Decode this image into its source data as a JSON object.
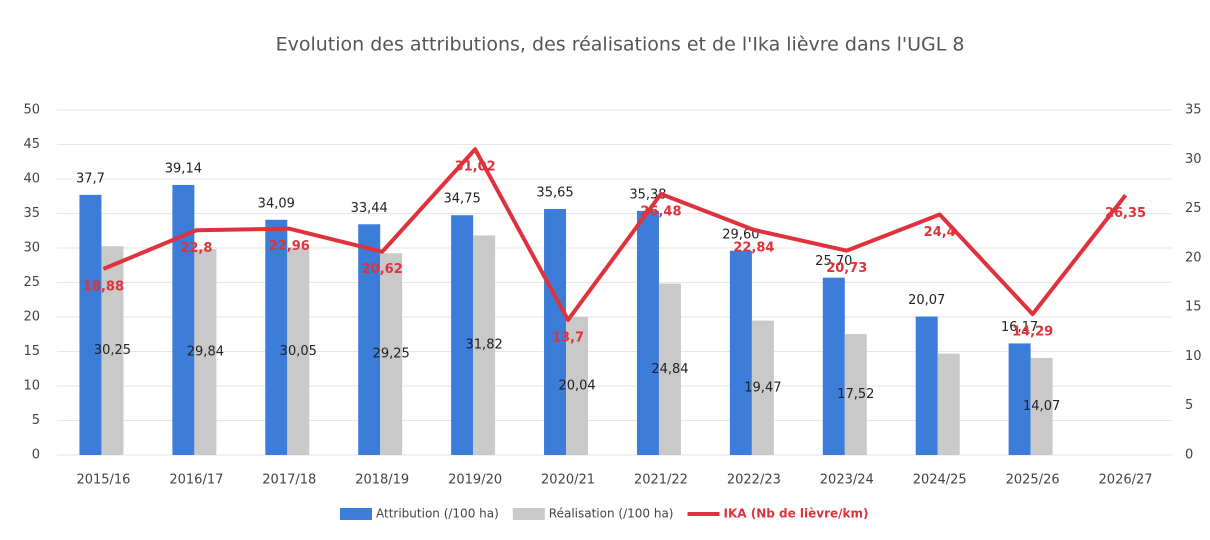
{
  "chart_data": {
    "type": "bar-line",
    "title": "Evolution des attributions, des réalisations et de l'Ika lièvre dans l'UGL 8",
    "categories": [
      "2015/16",
      "2016/17",
      "2017/18",
      "2018/19",
      "2019/20",
      "2020/21",
      "2021/22",
      "2022/23",
      "2023/24",
      "2024/25",
      "2025/26",
      "2026/27"
    ],
    "series": [
      {
        "name": "Attribution (/100 ha)",
        "color": "#3b7dd8",
        "type": "bar",
        "values": [
          37.7,
          39.14,
          34.09,
          33.44,
          34.75,
          35.65,
          35.38,
          29.6,
          25.7,
          20.07,
          16.17,
          null
        ],
        "value_labels": [
          "37,7",
          "39,14",
          "34,09",
          "33,44",
          "34,75",
          "35,65",
          "35,38",
          "29,60",
          "25,70",
          "20,07",
          "16,17",
          null
        ]
      },
      {
        "name": "Réalisation (/100 ha)",
        "color": "#c9c9c9",
        "type": "bar",
        "values": [
          30.25,
          29.84,
          30.05,
          29.25,
          31.82,
          20.04,
          24.84,
          19.47,
          17.52,
          14.7,
          14.07,
          null
        ],
        "value_labels": [
          "30,25",
          "29,84",
          "30,05",
          "29,25",
          "31,82",
          "20,04",
          "24,84",
          "19,47",
          "17,52",
          null,
          "14,07",
          null
        ]
      },
      {
        "name": "IKA (Nb de lièvre/km)",
        "color": "#e0323c",
        "type": "line",
        "axis": "y2",
        "values": [
          18.88,
          22.8,
          22.96,
          20.62,
          31.02,
          13.7,
          26.48,
          22.84,
          20.73,
          24.4,
          14.29,
          26.35
        ],
        "value_labels": [
          "18,88",
          "22,8",
          "22,96",
          "20,62",
          "31,02",
          "13,7",
          "26,48",
          "22,84",
          "20,73",
          "24,4",
          "14,29",
          "26,35"
        ]
      }
    ],
    "ylim": [
      0,
      50
    ],
    "yticks": [
      0,
      5,
      10,
      15,
      20,
      25,
      30,
      35,
      40,
      45,
      50
    ],
    "y2lim": [
      0,
      35
    ],
    "y2ticks": [
      0,
      5,
      10,
      15,
      20,
      25,
      30,
      35
    ],
    "grid": true,
    "legend": "bottom"
  }
}
